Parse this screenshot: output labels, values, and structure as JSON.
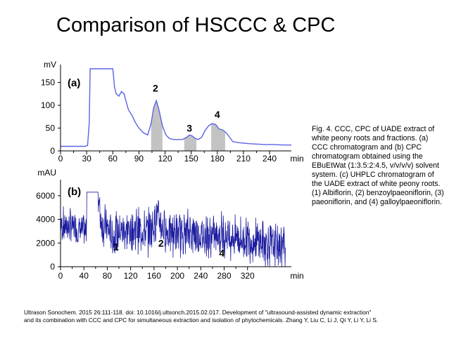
{
  "title": "Comparison of HSCCC & CPC",
  "caption": "Fig. 4. CCC, CPC of UADE extract of white peony roots and fractions. (a) CCC chromatogram and (b) CPC chromatogram obtained using the EBuEtWat (1:3.5:2:4.5, v/v/v/v) solvent system. (c) UHPLC chromatogram of the UADE extract of white peony roots. (1) Albiflorin, (2) benzoylpaeoniflorin, (3) paeoniflorin, and (4) galloylpaeoniflorin.",
  "citation": {
    "line1": "Ultrason Sonochem. 2015 26:111-118. doi: 10.1016/j.ultsonch.2015.02.017.  Development of \"ultrasound-assisted dynamic extraction\"",
    "line2": "and its combination with CCC and CPC for simultaneous extraction and isolation of phytochemicals. Zhang Y, Liu C, Li J, Qi Y, Li Y, Li S."
  },
  "colors": {
    "ccc_trace": "#5b63e6",
    "cpc_trace": "#1b1ba0",
    "fraction_fill": "#c3c3c3"
  },
  "chart_data": [
    {
      "type": "line",
      "panel_label": "(a)",
      "ylabel": "mV",
      "xlabel": "min",
      "xlim": [
        0,
        265
      ],
      "ylim": [
        0,
        180
      ],
      "xticks": [
        0,
        30,
        60,
        90,
        120,
        150,
        180,
        210,
        240
      ],
      "yticks": [
        0,
        50,
        100,
        150
      ],
      "series": [
        {
          "x": [
            0,
            20,
            28,
            31,
            33,
            34,
            40,
            55,
            60,
            62,
            64,
            67,
            70,
            73,
            75,
            78,
            82,
            86,
            90,
            95,
            100,
            104,
            107,
            110,
            113,
            117,
            121,
            125,
            130,
            135,
            140,
            145,
            148,
            151,
            154,
            158,
            162,
            166,
            170,
            174,
            178,
            182,
            186,
            190,
            194,
            198,
            205,
            215,
            225,
            235,
            245,
            255,
            265
          ],
          "y": [
            10,
            10,
            10,
            12,
            60,
            180,
            180,
            180,
            180,
            140,
            125,
            120,
            130,
            125,
            110,
            90,
            78,
            62,
            50,
            40,
            35,
            60,
            95,
            110,
            90,
            55,
            35,
            27,
            25,
            25,
            25,
            30,
            35,
            33,
            28,
            25,
            30,
            45,
            55,
            60,
            58,
            48,
            46,
            40,
            30,
            20,
            18,
            16,
            15,
            14,
            14,
            13,
            13
          ]
        }
      ],
      "fractions": [
        {
          "label": "2",
          "x_range": [
            104,
            117
          ],
          "label_x": 109,
          "label_y": 130
        },
        {
          "label": "3",
          "x_range": [
            142,
            156
          ],
          "label_x": 148,
          "label_y": 42
        },
        {
          "label": "4",
          "x_range": [
            173,
            189
          ],
          "label_x": 180,
          "label_y": 72
        }
      ]
    },
    {
      "type": "line",
      "panel_label": "(b)",
      "ylabel": "mAU",
      "xlabel": "min",
      "xlim": [
        0,
        395
      ],
      "ylim": [
        0,
        7000
      ],
      "xticks": [
        0,
        40,
        80,
        120,
        160,
        200,
        240,
        280,
        320
      ],
      "yticks": [
        0,
        2000,
        4000,
        6000
      ],
      "series": [
        {
          "x": [
            0,
            20,
            40,
            44,
            45,
            50,
            60,
            64,
            66,
            70,
            80,
            90,
            100,
            110,
            120,
            130,
            140,
            150,
            160,
            165,
            170,
            175,
            180,
            190,
            200,
            210,
            220,
            230,
            240,
            250,
            260,
            270,
            280,
            290,
            300,
            310,
            320,
            330,
            340,
            350,
            360,
            370,
            380,
            385
          ],
          "y": [
            3500,
            3400,
            3000,
            2800,
            6300,
            6300,
            6300,
            6300,
            5200,
            3800,
            3200,
            2500,
            2900,
            3100,
            3000,
            3200,
            3000,
            2900,
            3700,
            4200,
            3800,
            3400,
            3000,
            2900,
            2800,
            2900,
            3000,
            2800,
            2700,
            2600,
            2500,
            2700,
            2800,
            2600,
            2500,
            2300,
            2400,
            2200,
            2100,
            2000,
            1900,
            1800,
            1700,
            1700
          ]
        }
      ],
      "peaks": [
        {
          "label": "1",
          "label_x": 95,
          "label_y": 1400
        },
        {
          "label": "2",
          "label_x": 172,
          "label_y": 1700
        },
        {
          "label": "4",
          "label_x": 276,
          "label_y": 850
        }
      ]
    }
  ]
}
